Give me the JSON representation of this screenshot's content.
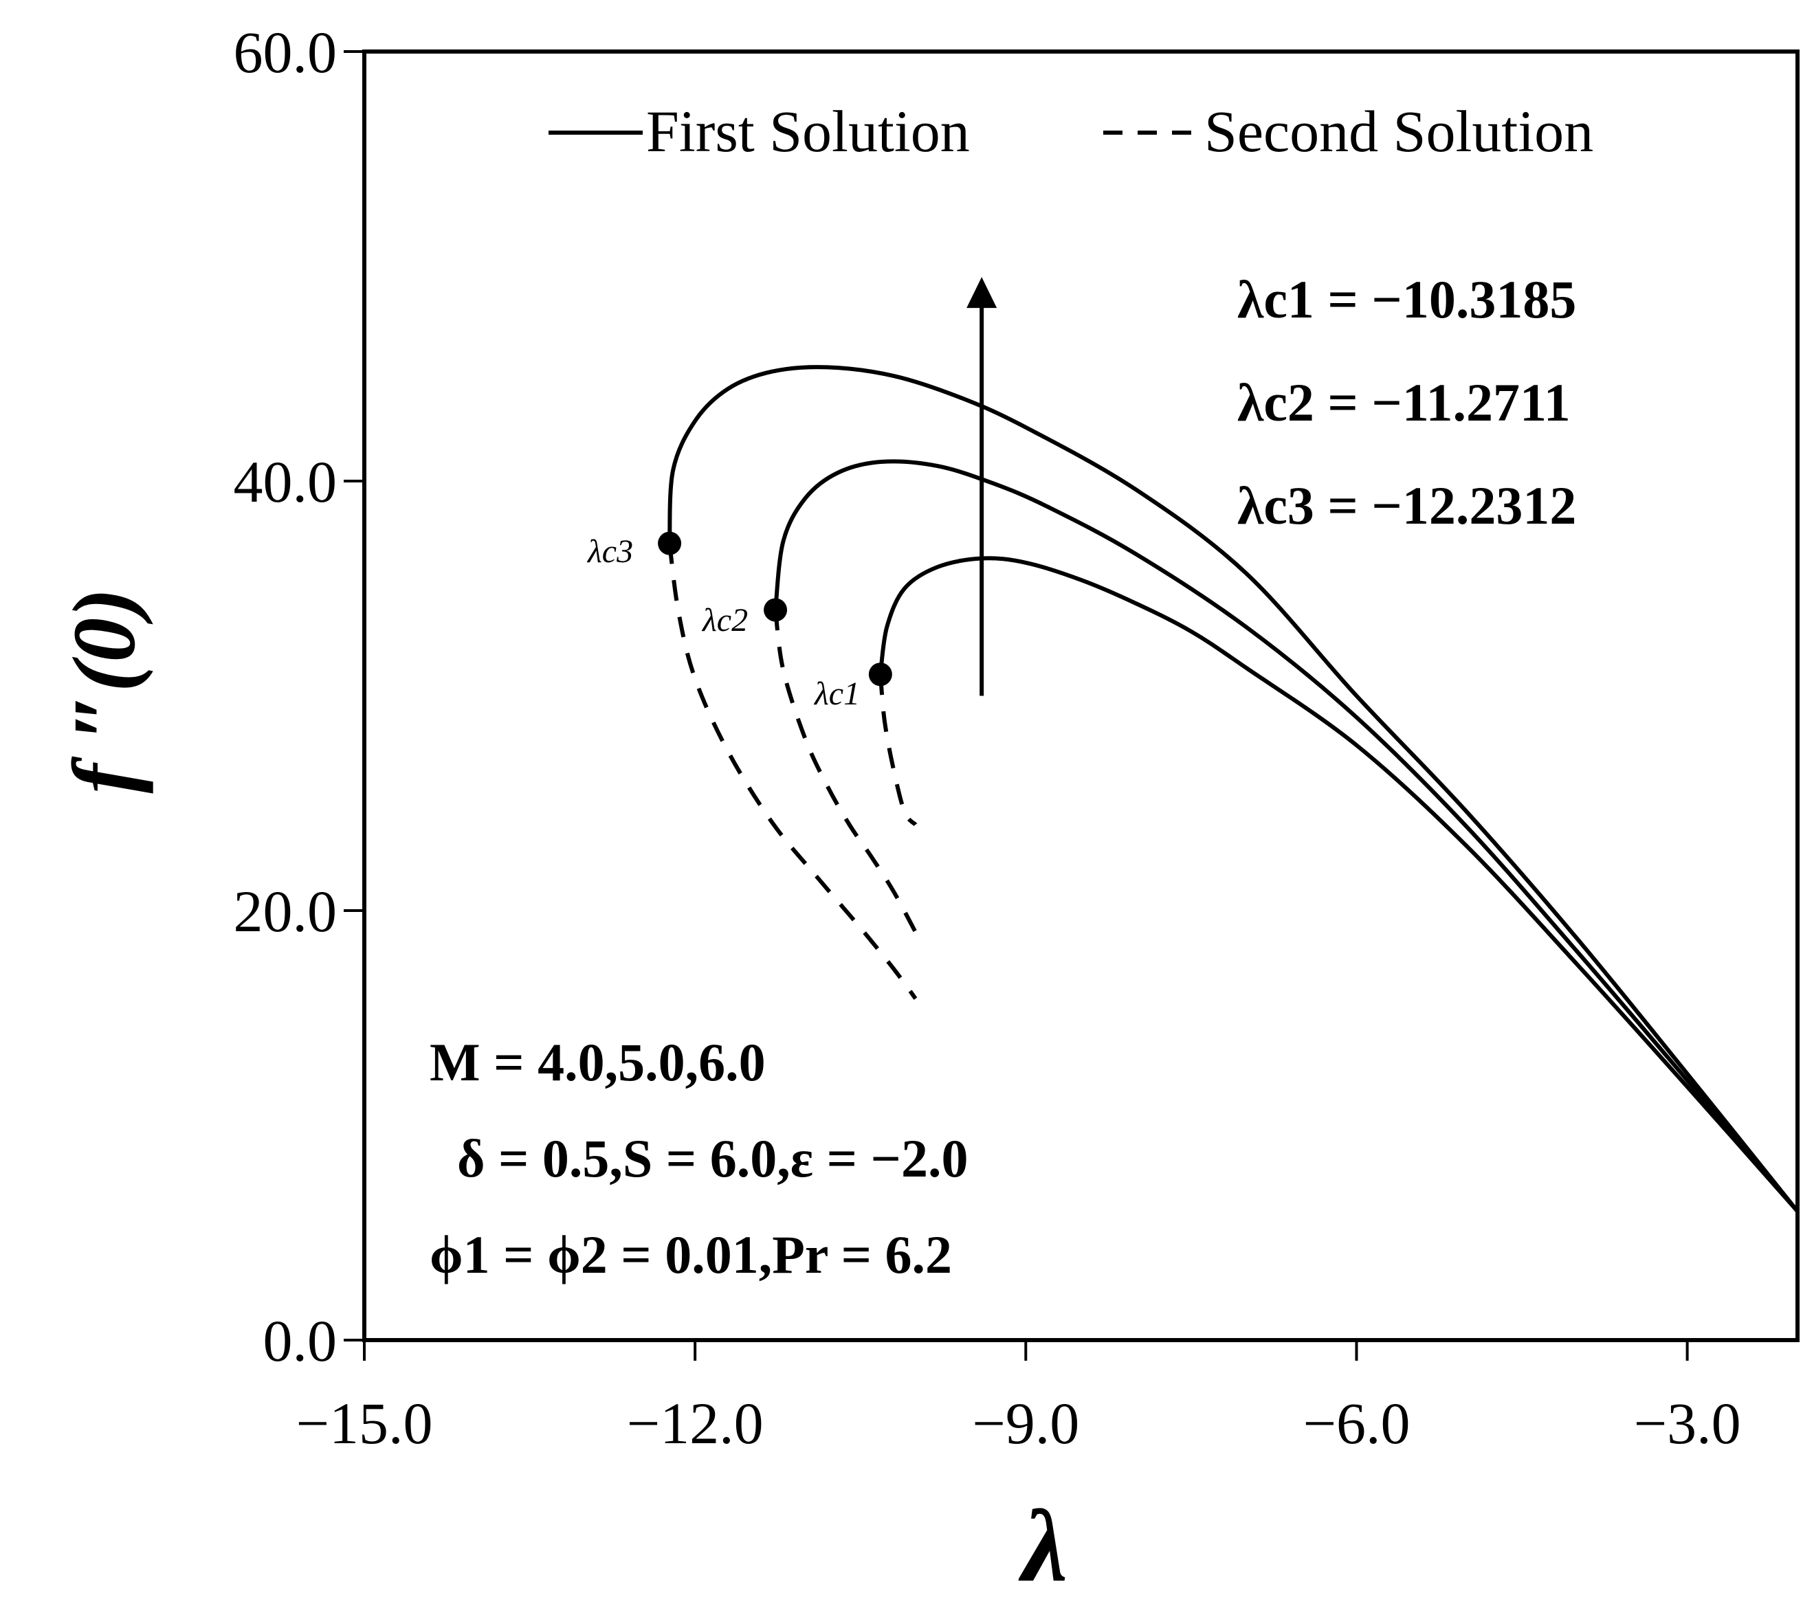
{
  "chart_data": {
    "type": "line",
    "title": "",
    "xlabel": "λ",
    "ylabel": "f ″(0)",
    "xlim": [
      -15.0,
      -2.0
    ],
    "ylim": [
      0.0,
      60.0
    ],
    "xticks": [
      -15.0,
      -12.0,
      -9.0,
      -6.0,
      -3.0
    ],
    "xtick_labels": [
      "−15.0",
      "−12.0",
      "−9.0",
      "−6.0",
      "−3.0"
    ],
    "yticks": [
      0.0,
      20.0,
      40.0,
      60.0
    ],
    "ytick_labels": [
      "0.0",
      "20.0",
      "40.0",
      "60.0"
    ],
    "grid": false,
    "legend_position": "top",
    "legend": [
      {
        "label": "First Solution",
        "style": "solid"
      },
      {
        "label": "Second Solution",
        "style": "dashed"
      }
    ],
    "series": [
      {
        "style": "solid",
        "x": [
          -10.3185,
          -10.26,
          -10.1,
          -9.8,
          -9.4,
          -9.0,
          -8.5,
          -8.0,
          -7.5,
          -7.0,
          -6.0,
          -5.0,
          -4.0,
          -3.0,
          -2.0
        ],
        "y": [
          31.0,
          33.2,
          35.0,
          36.0,
          36.4,
          36.2,
          35.4,
          34.3,
          33.0,
          31.3,
          27.7,
          23.0,
          17.5,
          11.8,
          6.0
        ]
      },
      {
        "style": "solid",
        "x": [
          -11.2711,
          -11.2,
          -11.0,
          -10.7,
          -10.3,
          -9.8,
          -9.3,
          -8.8,
          -8.0,
          -7.0,
          -6.0,
          -5.0,
          -4.0,
          -3.0,
          -2.0
        ],
        "y": [
          34.0,
          37.2,
          39.2,
          40.4,
          40.9,
          40.7,
          39.9,
          38.8,
          36.6,
          33.2,
          29.0,
          23.9,
          18.1,
          12.1,
          6.0
        ]
      },
      {
        "style": "solid",
        "x": [
          -12.2312,
          -12.2,
          -12.0,
          -11.7,
          -11.3,
          -10.8,
          -10.2,
          -9.6,
          -9.0,
          -8.0,
          -7.0,
          -6.0,
          -5.0,
          -4.0,
          -3.0,
          -2.0
        ],
        "y": [
          37.1,
          40.5,
          42.8,
          44.3,
          45.1,
          45.3,
          44.9,
          43.9,
          42.5,
          39.6,
          35.7,
          30.0,
          24.6,
          18.7,
          12.4,
          6.0
        ]
      },
      {
        "style": "dashed",
        "x": [
          -10.3185,
          -10.28,
          -10.2,
          -10.1,
          -10.0
        ],
        "y": [
          31.0,
          28.8,
          26.6,
          24.6,
          24.0
        ]
      },
      {
        "style": "dashed",
        "x": [
          -11.2711,
          -11.2,
          -11.0,
          -10.8,
          -10.6,
          -10.4,
          -10.2,
          -10.0
        ],
        "y": [
          34.0,
          31.2,
          28.0,
          25.8,
          24.0,
          22.5,
          20.9,
          19.0
        ]
      },
      {
        "style": "dashed",
        "x": [
          -12.2312,
          -12.15,
          -12.0,
          -11.7,
          -11.3,
          -10.9,
          -10.5,
          -10.2,
          -10.0
        ],
        "y": [
          37.1,
          33.9,
          30.8,
          27.4,
          24.1,
          21.6,
          19.2,
          17.3,
          15.9
        ]
      }
    ],
    "critical_points": [
      {
        "x": -10.3185,
        "y": 31.0
      },
      {
        "x": -11.2711,
        "y": 34.0
      },
      {
        "x": -12.2312,
        "y": 37.1
      }
    ],
    "arrow": {
      "x": -9.4,
      "y_from": 30.0,
      "y_to": 49.5
    },
    "annotations": {
      "critical_values": [
        "λc1 = −10.3185",
        "λc2 = −11.2711",
        "λc3 = −12.2312"
      ],
      "point_labels": [
        "λc1",
        "λc2",
        "λc3"
      ],
      "params": [
        "M = 4.0,5.0,6.0",
        "δ = 0.5,S = 6.0,ε = −2.0",
        "ϕ1 = ϕ2 = 0.01,Pr = 6.2"
      ]
    }
  }
}
